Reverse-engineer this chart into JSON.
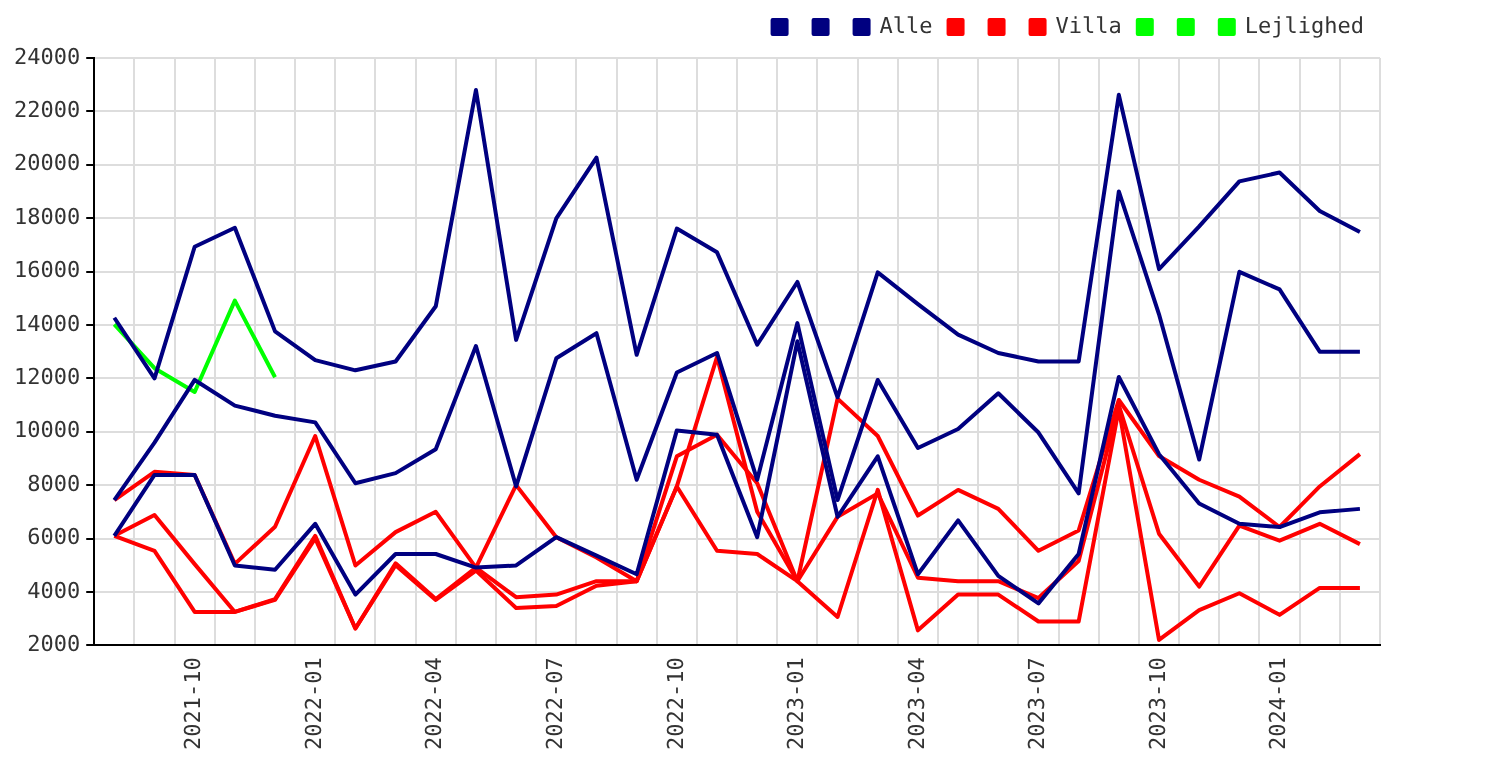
{
  "chart_data": {
    "type": "line",
    "categories": [
      null,
      null,
      "2021-10",
      null,
      null,
      "2022-01",
      null,
      null,
      "2022-04",
      null,
      null,
      "2022-07",
      null,
      null,
      "2022-10",
      null,
      null,
      "2023-01",
      null,
      null,
      "2023-04",
      null,
      null,
      "2023-07",
      null,
      null,
      "2023-10",
      null,
      null,
      "2024-01",
      null,
      null
    ],
    "series": [
      {
        "color": "#000080",
        "values": [
          14270,
          12000,
          16930,
          17640,
          13760,
          12680,
          12300,
          12630,
          14700,
          22800,
          13440,
          17990,
          20270,
          12880,
          17610,
          16720,
          13260,
          15610,
          11290,
          15970,
          14780,
          13640,
          12950,
          12630,
          12630,
          22620,
          16090,
          17690,
          19380,
          19710,
          18270,
          17480
        ]
      },
      {
        "color": "#000080",
        "values": [
          7440,
          9590,
          11940,
          10980,
          10600,
          10350,
          8070,
          8450,
          9340,
          13210,
          7950,
          12750,
          13690,
          8200,
          12220,
          12950,
          8200,
          14070,
          7440,
          11940,
          9390,
          10100,
          11440,
          9970,
          7690,
          19000,
          14400,
          8960,
          15990,
          15330,
          13000,
          13000
        ]
      },
      {
        "name": "Alle",
        "color": "#000080",
        "values": [
          6100,
          8380,
          8380,
          4990,
          4830,
          6550,
          3900,
          5420,
          5420,
          4910,
          4990,
          6050,
          5360,
          4660,
          10050,
          9890,
          6050,
          13390,
          6810,
          9080,
          4660,
          6680,
          4600,
          3570,
          5420,
          12050,
          9160,
          7310,
          6550,
          6430,
          6980,
          7110
        ]
      },
      {
        "color": "#ff0000",
        "values": [
          7440,
          8500,
          8380,
          5050,
          6440,
          9840,
          4990,
          6240,
          7000,
          4910,
          8000,
          6050,
          5290,
          4400,
          7950,
          12800,
          7000,
          4400,
          11240,
          9840,
          6860,
          7820,
          7110,
          5540,
          6300,
          11190,
          9090,
          8200,
          7570,
          6430,
          7950,
          9160
        ]
      },
      {
        "color": "#ff0000",
        "values": [
          6100,
          6880,
          5040,
          3250,
          3730,
          6100,
          2630,
          5070,
          3730,
          4910,
          3800,
          3900,
          4400,
          4400,
          9080,
          9890,
          8070,
          4400,
          6810,
          7690,
          4530,
          4400,
          4400,
          3770,
          5160,
          10990,
          6180,
          4200,
          6480,
          5920,
          6550,
          5790
        ]
      },
      {
        "name": "Villa",
        "color": "#ff0000",
        "values": [
          6100,
          5540,
          3250,
          3250,
          3700,
          6000,
          2630,
          5000,
          3700,
          4800,
          3400,
          3470,
          4230,
          4400,
          7950,
          5540,
          5420,
          4400,
          3060,
          7820,
          2560,
          3900,
          3900,
          2890,
          2890,
          10860,
          2200,
          3320,
          3950,
          3140,
          4150,
          4150
        ]
      },
      {
        "color": "#00ff00",
        "values": [
          14020,
          12380,
          11490,
          14910,
          12040,
          null,
          null,
          null,
          null,
          null,
          null,
          null,
          null,
          null,
          null,
          null,
          null,
          null,
          null,
          null,
          null,
          null,
          null,
          null,
          null,
          null,
          null,
          null,
          null,
          null,
          null,
          null
        ]
      },
      {
        "color": "#00ff00",
        "values": [
          null,
          null,
          null,
          null,
          null,
          null,
          null,
          null,
          null,
          null,
          null,
          null,
          null,
          null,
          null,
          null,
          null,
          null,
          null,
          null,
          null,
          null,
          null,
          null,
          null,
          null,
          null,
          null,
          null,
          null,
          null,
          null
        ]
      },
      {
        "name": "Lejlighed",
        "color": "#00ff00",
        "values": [
          null,
          null,
          null,
          null,
          null,
          null,
          null,
          null,
          null,
          null,
          null,
          null,
          null,
          null,
          null,
          null,
          null,
          null,
          null,
          null,
          null,
          null,
          null,
          null,
          null,
          null,
          null,
          null,
          null,
          null,
          null,
          null
        ]
      }
    ],
    "ylim": [
      2000,
      24000
    ],
    "yticks": [
      2000,
      4000,
      6000,
      8000,
      10000,
      12000,
      14000,
      16000,
      18000,
      20000,
      22000,
      24000
    ],
    "grid": true,
    "legend": "top right",
    "marker": "none",
    "line_style": "solid"
  }
}
